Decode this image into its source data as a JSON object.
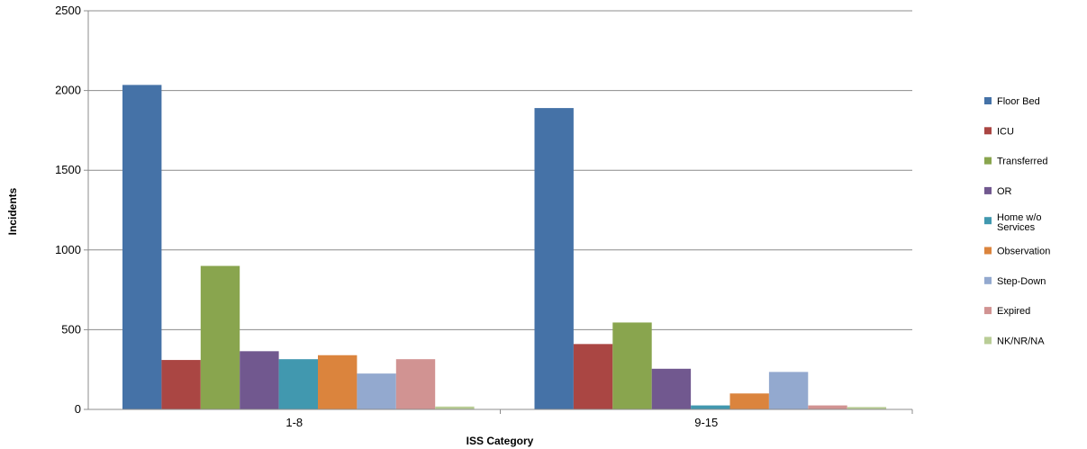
{
  "chart_data": {
    "type": "bar",
    "title": "",
    "xlabel": "ISS Category",
    "ylabel": "Incidents",
    "ylim": [
      0,
      2500
    ],
    "yticks": [
      0,
      500,
      1000,
      1500,
      2000,
      2500
    ],
    "grid": true,
    "legend_position": "right",
    "categories": [
      "1-8",
      "9-15"
    ],
    "series": [
      {
        "name": "Floor Bed",
        "color": "#4572A7",
        "values": [
          2035,
          1890
        ]
      },
      {
        "name": "ICU",
        "color": "#AA4643",
        "values": [
          310,
          410
        ]
      },
      {
        "name": "Transferred",
        "color": "#89A54E",
        "values": [
          900,
          545
        ]
      },
      {
        "name": "OR",
        "color": "#71588F",
        "values": [
          365,
          255
        ]
      },
      {
        "name": "Home w/o Services",
        "color": "#4198AF",
        "values": [
          315,
          25
        ]
      },
      {
        "name": "Observation",
        "color": "#DB843D",
        "values": [
          340,
          100
        ]
      },
      {
        "name": "Step-Down",
        "color": "#93A9CF",
        "values": [
          225,
          235
        ]
      },
      {
        "name": "Expired",
        "color": "#D19392",
        "values": [
          315,
          25
        ]
      },
      {
        "name": "NK/NR/NA",
        "color": "#B9CD96",
        "values": [
          18,
          15
        ]
      }
    ]
  }
}
